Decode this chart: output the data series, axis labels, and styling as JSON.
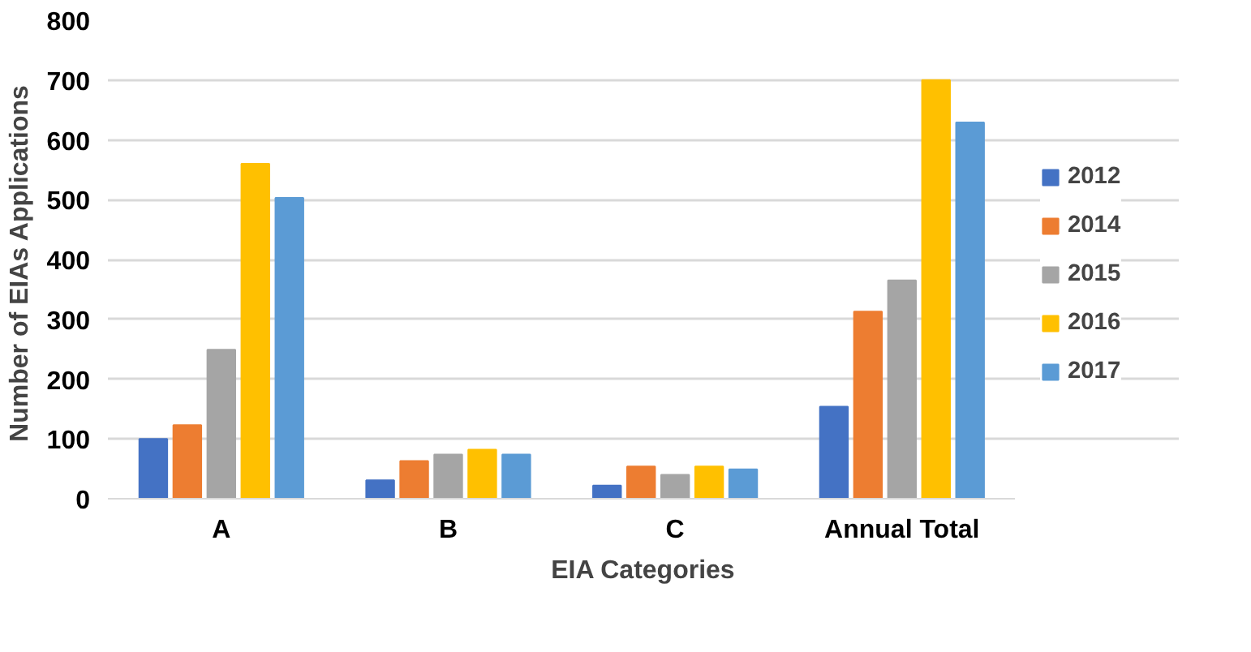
{
  "chart_data": {
    "type": "bar",
    "xlabel": "EIA Categories",
    "ylabel": "Number  of EIAs Applications",
    "categories": [
      "A",
      "B",
      "C",
      "Annual Total"
    ],
    "series": [
      {
        "name": "2012",
        "color": "#4472c4",
        "values": [
          100,
          31,
          22,
          154
        ]
      },
      {
        "name": "2014",
        "color": "#ed7d31",
        "values": [
          123,
          63,
          54,
          313
        ]
      },
      {
        "name": "2015",
        "color": "#a5a5a5",
        "values": [
          249,
          74,
          40,
          365
        ]
      },
      {
        "name": "2016",
        "color": "#ffc000",
        "values": [
          560,
          82,
          54,
          700
        ]
      },
      {
        "name": "2017",
        "color": "#5b9bd5",
        "values": [
          503,
          74,
          49,
          629
        ]
      }
    ],
    "ylim": [
      0,
      800
    ],
    "yticks": [
      0,
      100,
      200,
      300,
      400,
      500,
      600,
      700,
      800
    ],
    "grid": "y",
    "legend": "right"
  }
}
